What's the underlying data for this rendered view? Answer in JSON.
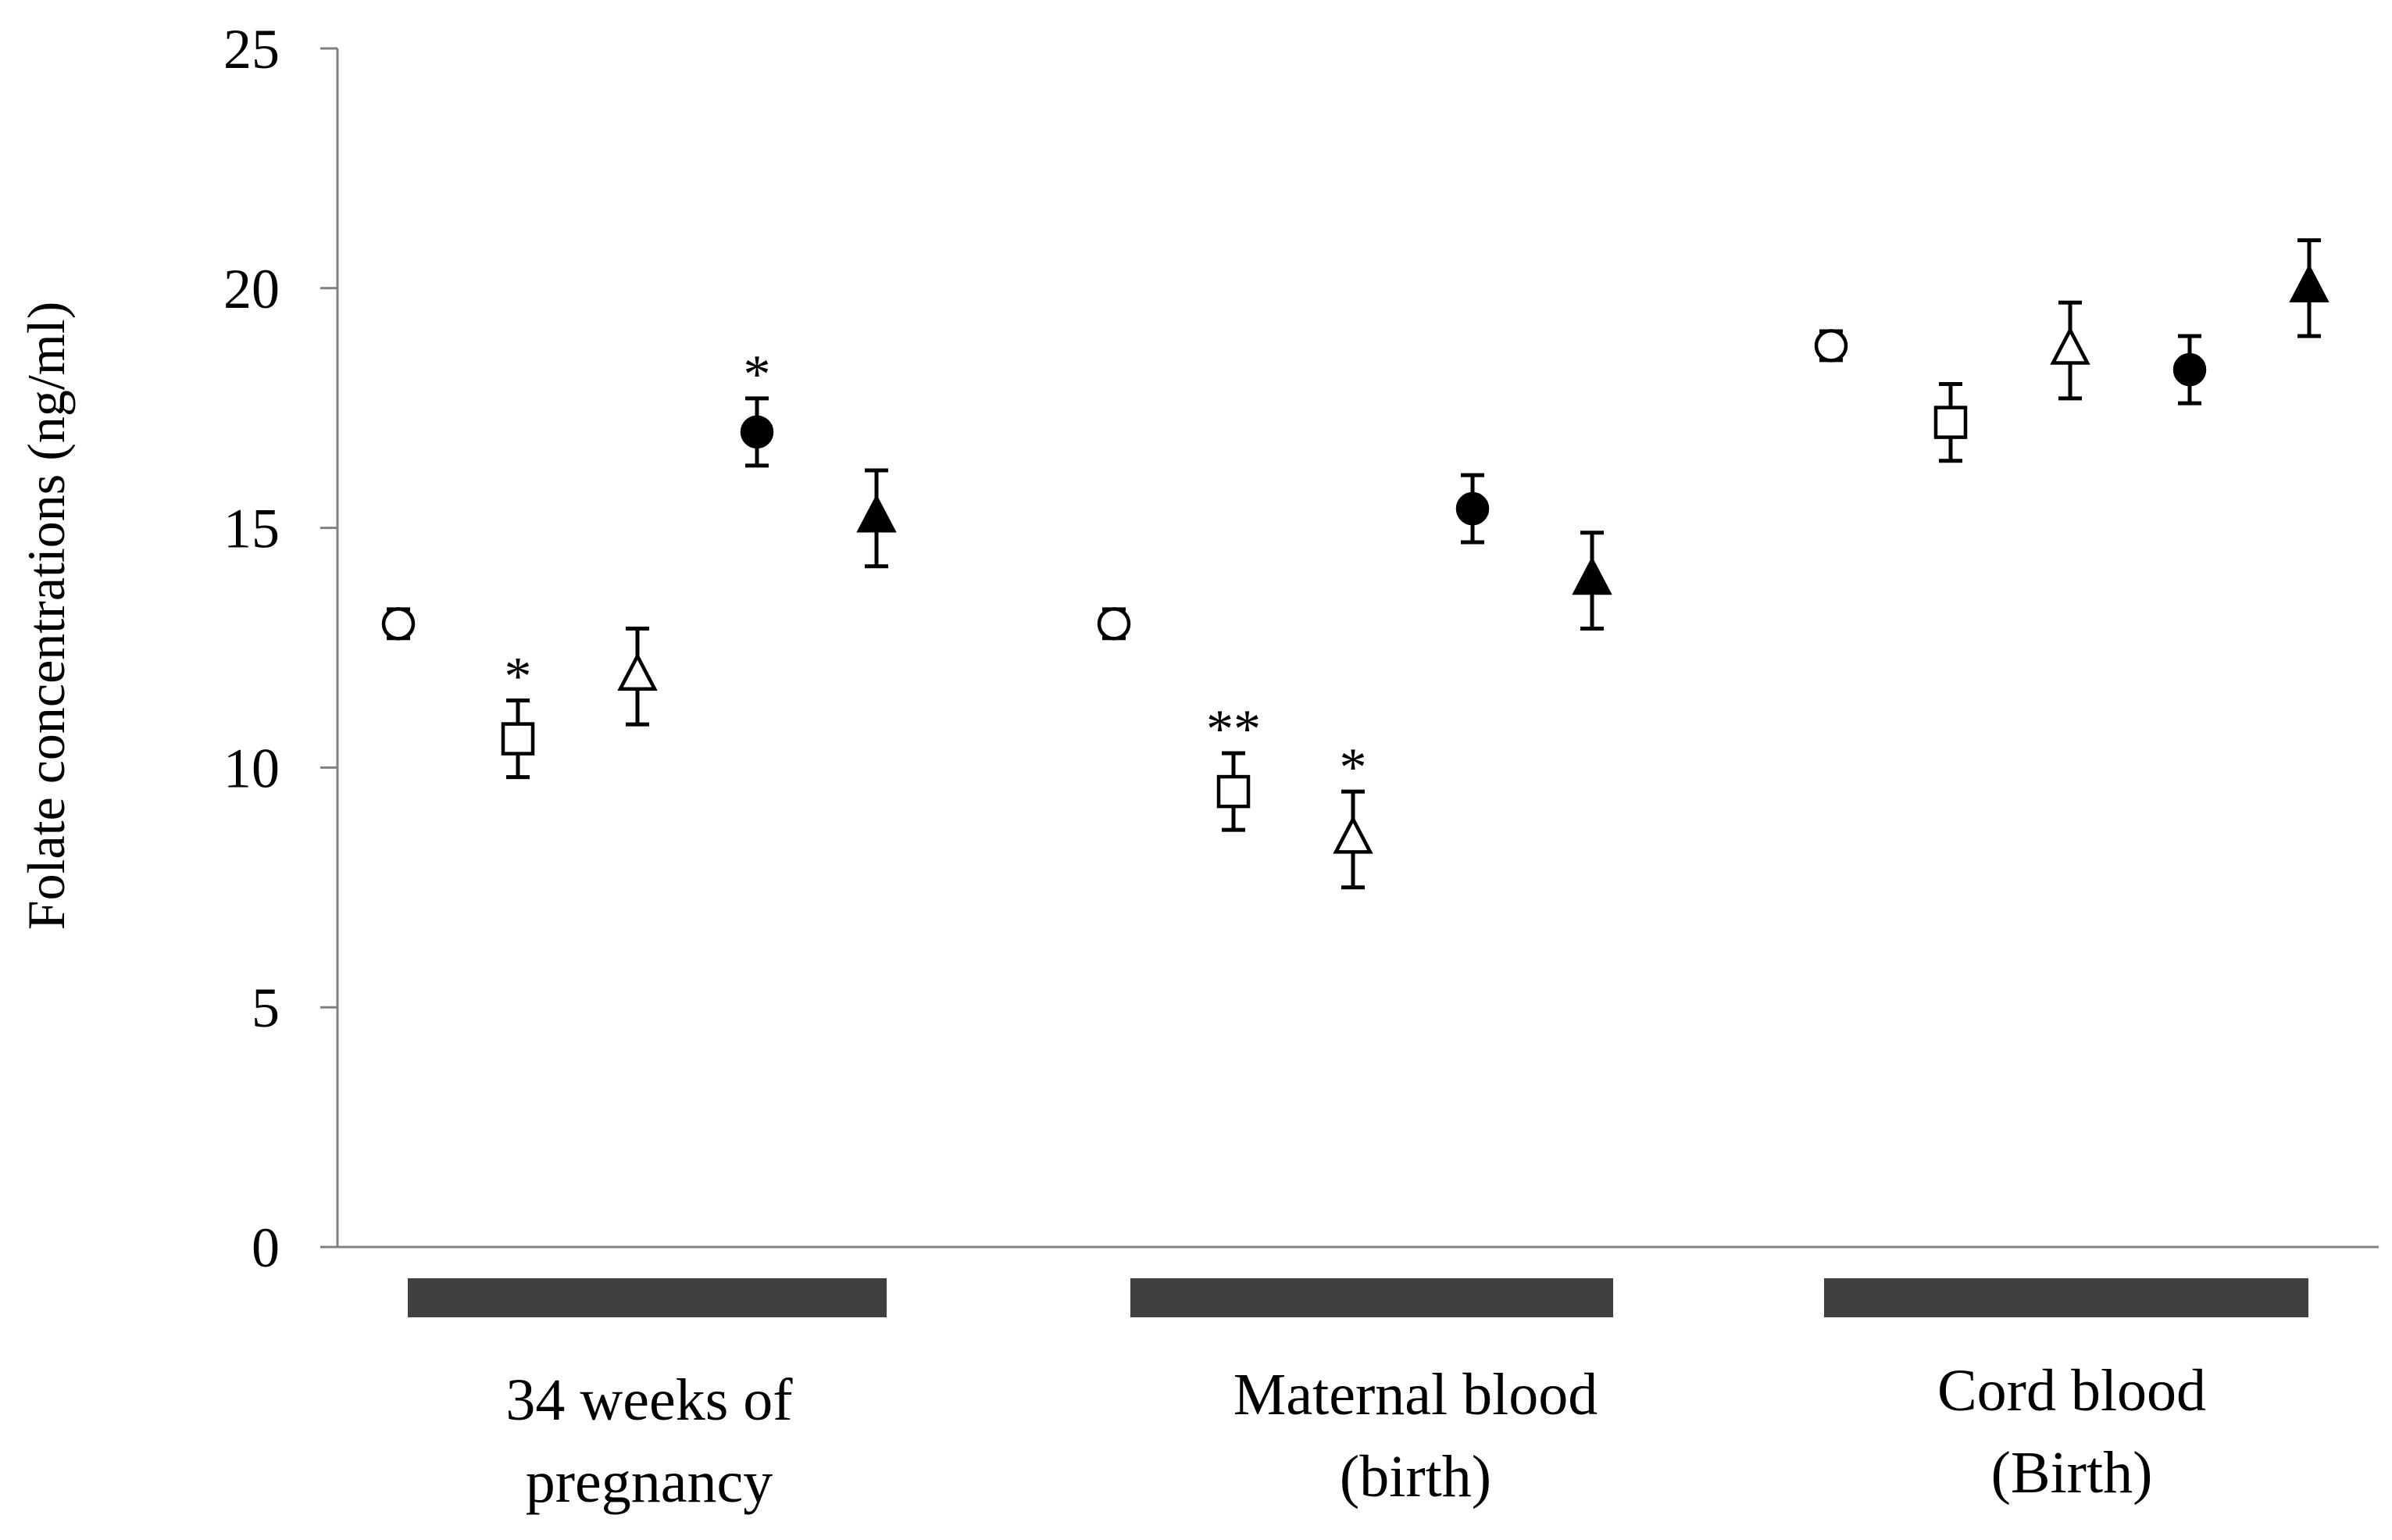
{
  "chart_data": {
    "type": "scatter",
    "title": "",
    "xlabel": "",
    "ylabel": "Folate concentrations (ng/ml)",
    "ylim": [
      0,
      25
    ],
    "yticks": [
      0,
      5,
      10,
      15,
      20,
      25
    ],
    "yticks_labels": [
      "0",
      "5",
      "10",
      "15",
      "20",
      "25"
    ],
    "grid": false,
    "legend": "none",
    "groups": [
      {
        "label_line1": "34 weeks of",
        "label_line2": "pregnancy"
      },
      {
        "label_line1": "Maternal blood",
        "label_line2": "(birth)"
      },
      {
        "label_line1": "Cord blood",
        "label_line2": "(Birth)"
      }
    ],
    "series": [
      {
        "name": "open circle",
        "marker": "circle",
        "filled": false,
        "values": [
          13.0,
          13.0,
          18.8
        ],
        "errors": [
          0.3,
          0.3,
          0.3
        ],
        "significance": [
          "",
          "",
          ""
        ]
      },
      {
        "name": "open square",
        "marker": "square",
        "filled": false,
        "values": [
          10.6,
          9.5,
          17.2
        ],
        "errors": [
          0.8,
          0.8,
          0.8
        ],
        "significance": [
          "*",
          "**",
          ""
        ]
      },
      {
        "name": "open triangle",
        "marker": "triangle",
        "filled": false,
        "values": [
          11.9,
          8.5,
          18.7
        ],
        "errors": [
          1.0,
          1.0,
          1.0
        ],
        "significance": [
          "",
          "*",
          ""
        ]
      },
      {
        "name": "filled circle",
        "marker": "circle",
        "filled": true,
        "values": [
          17.0,
          15.4,
          18.3
        ],
        "errors": [
          0.7,
          0.7,
          0.7
        ],
        "significance": [
          "*",
          "",
          ""
        ]
      },
      {
        "name": "filled triangle",
        "marker": "triangle",
        "filled": true,
        "values": [
          15.2,
          13.9,
          20.0
        ],
        "errors": [
          1.0,
          1.0,
          1.0
        ],
        "significance": [
          "",
          "",
          ""
        ]
      }
    ],
    "colors": {
      "axis": "#808080",
      "marker": "#000000",
      "group_bar": "#404040"
    }
  }
}
